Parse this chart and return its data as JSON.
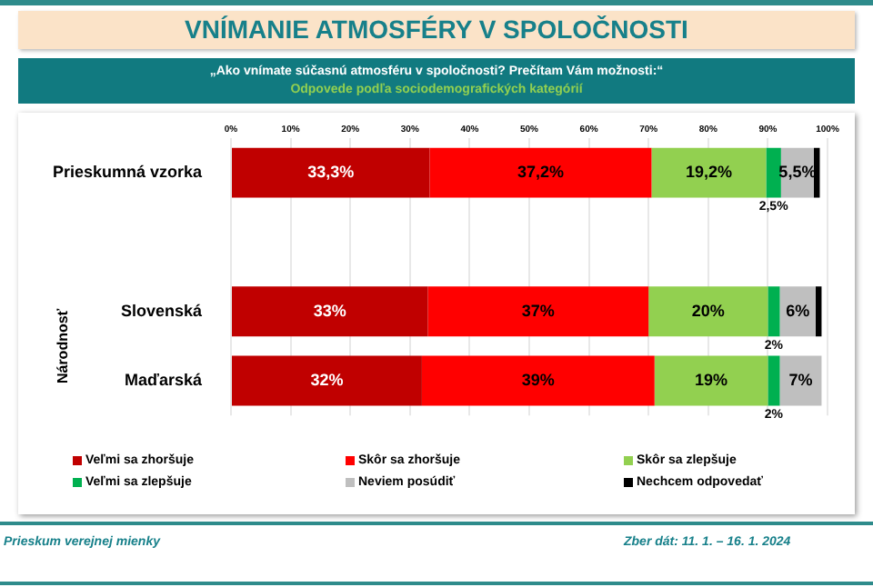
{
  "chart_data": {
    "type": "bar",
    "orientation": "horizontal",
    "stacked": true,
    "title": "VNÍMANIE ATMOSFÉRY V SPOLOČNOSTI",
    "subtitle": "„Ako vnímate súčasnú atmosféru v spoločnosti? Prečítam Vám možnosti:“",
    "annotations": [
      "Odpovede podľa sociodemografických kategórií",
      "Prieskum verejnej mienky",
      "Zber dát: 11. 1. – 16. 1. 2024"
    ],
    "ylabel": "Národnosť",
    "categories": [
      "Prieskumná vzorka",
      null,
      "Slovenská",
      "Maďarská"
    ],
    "series": [
      {
        "name": "Veľmi sa zhoršuje",
        "color": "#c00000",
        "values": [
          33.3,
          null,
          33,
          32
        ],
        "value_labels": [
          "33,3%",
          null,
          "33%",
          "32%"
        ]
      },
      {
        "name": "Skôr sa zhoršuje",
        "color": "#ff0000",
        "values": [
          37.2,
          null,
          37,
          39
        ],
        "value_labels": [
          "37,2%",
          null,
          "37%",
          "39%"
        ]
      },
      {
        "name": "Skôr sa zlepšuje",
        "color": "#92d050",
        "values": [
          19.2,
          null,
          20,
          19
        ],
        "value_labels": [
          "19,2%",
          null,
          "20%",
          "19%"
        ]
      },
      {
        "name": "Veľmi sa zlepšuje",
        "color": "#00b050",
        "values": [
          2.5,
          null,
          2,
          2
        ],
        "value_labels": [
          "2,5%",
          null,
          "2%",
          "2%"
        ]
      },
      {
        "name": "Neviem posúdiť",
        "color": "#bfbfbf",
        "values": [
          5.5,
          null,
          6,
          7
        ],
        "value_labels": [
          "5,5%",
          null,
          "6%",
          "7%"
        ]
      },
      {
        "name": "Nechcem odpovedať",
        "color": "#000000",
        "values": [
          1,
          null,
          1,
          0
        ],
        "value_labels": [
          null,
          null,
          null,
          null
        ]
      }
    ],
    "xlim": [
      0,
      100
    ],
    "xticks": [
      {
        "value": 0,
        "label": "0%"
      },
      {
        "value": 10,
        "label": "10%"
      },
      {
        "value": 20,
        "label": "20%"
      },
      {
        "value": 30,
        "label": "30%"
      },
      {
        "value": 40,
        "label": "40%"
      },
      {
        "value": 50,
        "label": "50%"
      },
      {
        "value": 60,
        "label": "60%"
      },
      {
        "value": 70,
        "label": "70%"
      },
      {
        "value": 80,
        "label": "80%"
      },
      {
        "value": 90,
        "label": "90%"
      },
      {
        "value": 100,
        "label": "100%"
      }
    ],
    "grid": "x",
    "legend": "bottom"
  }
}
